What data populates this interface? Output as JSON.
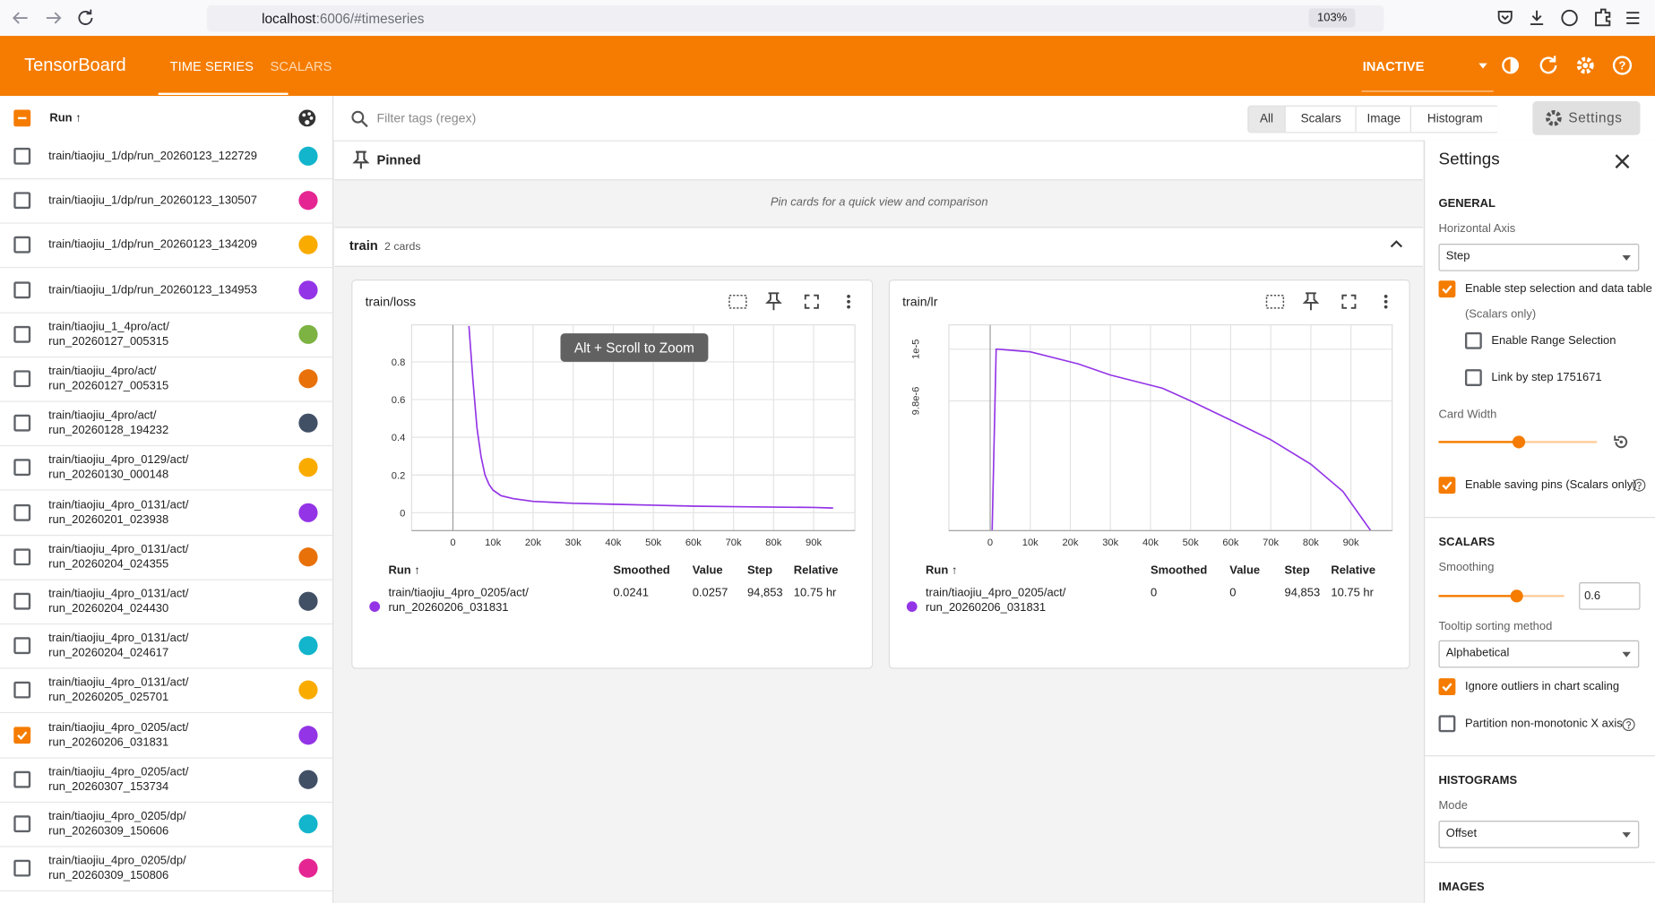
{
  "browser": {
    "host": "localhost",
    "path": ":6006/#timeseries",
    "zoom": "103%"
  },
  "header": {
    "title": "TensorBoard",
    "tabs": [
      {
        "label": "TIME SERIES",
        "active": true
      },
      {
        "label": "SCALARS",
        "active": false
      }
    ],
    "status": "INACTIVE"
  },
  "runs": {
    "header": "Run ↑",
    "items": [
      {
        "name_lines": [
          "train/tiaojiu_1/dp/run_20260123_122729"
        ],
        "color": "#12b5cb",
        "checked": false
      },
      {
        "name_lines": [
          "train/tiaojiu_1/dp/run_20260123_130507"
        ],
        "color": "#e52592",
        "checked": false
      },
      {
        "name_lines": [
          "train/tiaojiu_1/dp/run_20260123_134209"
        ],
        "color": "#f9ab00",
        "checked": false
      },
      {
        "name_lines": [
          "train/tiaojiu_1/dp/run_20260123_134953"
        ],
        "color": "#9334e6",
        "checked": false
      },
      {
        "name_lines": [
          "train/tiaojiu_1_4pro/act/",
          "run_20260127_005315"
        ],
        "color": "#7cb342",
        "checked": false
      },
      {
        "name_lines": [
          "train/tiaojiu_4pro/act/",
          "run_20260127_005315"
        ],
        "color": "#e8710a",
        "checked": false
      },
      {
        "name_lines": [
          "train/tiaojiu_4pro/act/",
          "run_20260128_194232"
        ],
        "color": "#425066",
        "checked": false
      },
      {
        "name_lines": [
          "train/tiaojiu_4pro_0129/act/",
          "run_20260130_000148"
        ],
        "color": "#f9ab00",
        "checked": false
      },
      {
        "name_lines": [
          "train/tiaojiu_4pro_0131/act/",
          "run_20260201_023938"
        ],
        "color": "#9334e6",
        "checked": false
      },
      {
        "name_lines": [
          "train/tiaojiu_4pro_0131/act/",
          "run_20260204_024355"
        ],
        "color": "#e8710a",
        "checked": false
      },
      {
        "name_lines": [
          "train/tiaojiu_4pro_0131/act/",
          "run_20260204_024430"
        ],
        "color": "#425066",
        "checked": false
      },
      {
        "name_lines": [
          "train/tiaojiu_4pro_0131/act/",
          "run_20260204_024617"
        ],
        "color": "#12b5cb",
        "checked": false
      },
      {
        "name_lines": [
          "train/tiaojiu_4pro_0131/act/",
          "run_20260205_025701"
        ],
        "color": "#f9ab00",
        "checked": false
      },
      {
        "name_lines": [
          "train/tiaojiu_4pro_0205/act/",
          "run_20260206_031831"
        ],
        "color": "#9334e6",
        "checked": true
      },
      {
        "name_lines": [
          "train/tiaojiu_4pro_0205/act/",
          "run_20260307_153734"
        ],
        "color": "#425066",
        "checked": false
      },
      {
        "name_lines": [
          "train/tiaojiu_4pro_0205/dp/",
          "run_20260309_150606"
        ],
        "color": "#12b5cb",
        "checked": false
      },
      {
        "name_lines": [
          "train/tiaojiu_4pro_0205/dp/",
          "run_20260309_150806"
        ],
        "color": "#e52592",
        "checked": false
      }
    ]
  },
  "toolbar": {
    "filter_placeholder": "Filter tags (regex)",
    "type_filters": [
      {
        "label": "All",
        "active": true
      },
      {
        "label": "Scalars",
        "active": false
      },
      {
        "label": "Image",
        "active": false
      },
      {
        "label": "Histogram",
        "active": false
      }
    ],
    "settings_button": "Settings"
  },
  "pinned": {
    "title": "Pinned",
    "hint": "Pin cards for a quick view and comparison"
  },
  "group": {
    "name": "train",
    "count": "2 cards"
  },
  "cards": [
    {
      "title": "train/loss",
      "tooltip": "Alt + Scroll to Zoom",
      "chart": {
        "type": "line",
        "color": "#9334e6",
        "x": [
          4000,
          5000,
          6000,
          7000,
          8000,
          9000,
          10000,
          12000,
          15000,
          20000,
          25000,
          30000,
          40000,
          50000,
          60000,
          70000,
          80000,
          90000,
          94853
        ],
        "values": [
          0.99,
          0.7,
          0.45,
          0.3,
          0.2,
          0.15,
          0.12,
          0.09,
          0.075,
          0.06,
          0.055,
          0.05,
          0.045,
          0.04,
          0.035,
          0.032,
          0.03,
          0.028,
          0.025
        ],
        "xlim": [
          -10300,
          100300
        ],
        "ylim": [
          -0.095,
          0.996
        ],
        "xticks": [
          0,
          {
            "value": 10000,
            "label": "10k"
          },
          {
            "value": 20000,
            "label": "20k"
          },
          {
            "value": 30000,
            "label": "30k"
          },
          {
            "value": 40000,
            "label": "40k"
          },
          {
            "value": 50000,
            "label": "50k"
          },
          {
            "value": 60000,
            "label": "60k"
          },
          {
            "value": 70000,
            "label": "70k"
          },
          {
            "value": 80000,
            "label": "80k"
          },
          {
            "value": 90000,
            "label": "90k"
          }
        ],
        "yticks": [
          0,
          0.2,
          0.4,
          0.6,
          0.8
        ],
        "grid": true
      },
      "table": {
        "headers": [
          "Run ↑",
          "Smoothed",
          "Value",
          "Step",
          "Relative"
        ],
        "row": {
          "run_lines": [
            "train/tiaojiu_4pro_0205/act/",
            "run_20260206_031831"
          ],
          "color": "#9334e6",
          "cells": [
            "0.0241",
            "0.0257",
            "94,853",
            "10.75 hr"
          ]
        }
      }
    },
    {
      "title": "train/lr",
      "chart": {
        "type": "line",
        "color": "#9334e6",
        "x": [
          500,
          1500,
          2000,
          10000,
          22000,
          30000,
          43000,
          50000,
          61000,
          70000,
          80000,
          88000,
          94853
        ],
        "values": [
          9.3e-06,
          1e-05,
          1e-05,
          9.99e-06,
          9.943e-06,
          9.9e-06,
          9.849e-06,
          9.8e-06,
          9.718e-06,
          9.65e-06,
          9.555e-06,
          9.45e-06,
          9.3e-06
        ],
        "xlim": [
          -10300,
          100300
        ],
        "ylim": [
          9.298e-06,
          1.00939e-05
        ],
        "xticks": [
          0,
          {
            "value": 10000,
            "label": "10k"
          },
          {
            "value": 20000,
            "label": "20k"
          },
          {
            "value": 30000,
            "label": "30k"
          },
          {
            "value": 40000,
            "label": "40k"
          },
          {
            "value": 50000,
            "label": "50k"
          },
          {
            "value": 60000,
            "label": "60k"
          },
          {
            "value": 70000,
            "label": "70k"
          },
          {
            "value": 80000,
            "label": "80k"
          },
          {
            "value": 90000,
            "label": "90k"
          }
        ],
        "yticks": [
          {
            "value": 1e-05,
            "label": "1e-5"
          },
          {
            "value": 9.8e-06,
            "label": "9.8e-6"
          }
        ],
        "grid": true
      },
      "table": {
        "headers": [
          "Run ↑",
          "Smoothed",
          "Value",
          "Step",
          "Relative"
        ],
        "row": {
          "run_lines": [
            "train/tiaojiu_4pro_0205/act/",
            "run_20260206_031831"
          ],
          "color": "#9334e6",
          "cells": [
            "0",
            "0",
            "94,853",
            "10.75 hr"
          ]
        }
      }
    }
  ],
  "settings": {
    "title": "Settings",
    "general": {
      "heading": "GENERAL",
      "horizontal_axis_label": "Horizontal Axis",
      "horizontal_axis": "Step",
      "step_selection": {
        "label": "Enable step selection and data table",
        "note": "(Scalars only)",
        "checked": true
      },
      "range_selection": {
        "label": "Enable Range Selection",
        "checked": false
      },
      "link_by_step": {
        "label": "Link by step 1751671",
        "checked": false
      },
      "card_width_label": "Card Width",
      "saving_pins": {
        "label": "Enable saving pins (Scalars only)",
        "checked": true
      }
    },
    "scalars": {
      "heading": "SCALARS",
      "smoothing_label": "Smoothing",
      "smoothing": "0.6",
      "tooltip_sort_label": "Tooltip sorting method",
      "tooltip_sort": "Alphabetical",
      "ignore_outliers": {
        "label": "Ignore outliers in chart scaling",
        "checked": true
      },
      "partition": {
        "label": "Partition non-monotonic X axis",
        "checked": false
      }
    },
    "histograms": {
      "heading": "HISTOGRAMS",
      "mode_label": "Mode",
      "mode": "Offset"
    },
    "images": {
      "heading": "IMAGES"
    }
  }
}
